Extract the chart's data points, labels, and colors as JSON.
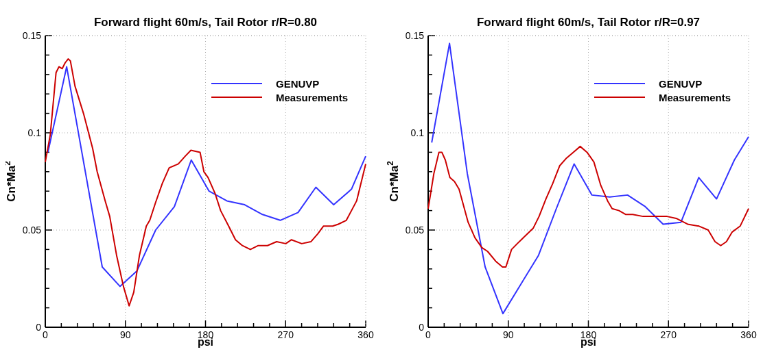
{
  "chart_data": [
    {
      "type": "line",
      "title": "Forward flight 60m/s, Tail Rotor r/R=0.80",
      "xlabel": "psi",
      "ylabel": "Cn*Ma$^{2}$",
      "xlim": [
        0,
        360
      ],
      "ylim": [
        0,
        0.15
      ],
      "xticks": [
        0,
        {
          "value": 18,
          "label": null
        },
        {
          "value": 36,
          "label": null
        },
        {
          "value": 54,
          "label": null
        },
        {
          "value": 72,
          "label": null
        },
        90,
        {
          "value": 108,
          "label": null
        },
        {
          "value": 126,
          "label": null
        },
        {
          "value": 144,
          "label": null
        },
        {
          "value": 162,
          "label": null
        },
        180,
        {
          "value": 198,
          "label": null
        },
        {
          "value": 216,
          "label": null
        },
        {
          "value": 234,
          "label": null
        },
        {
          "value": 252,
          "label": null
        },
        270,
        {
          "value": 288,
          "label": null
        },
        {
          "value": 306,
          "label": null
        },
        {
          "value": 324,
          "label": null
        },
        {
          "value": 342,
          "label": null
        },
        360
      ],
      "yticks": [
        0,
        {
          "value": 0.01,
          "label": null
        },
        {
          "value": 0.02,
          "label": null
        },
        {
          "value": 0.03,
          "label": null
        },
        {
          "value": 0.04,
          "label": null
        },
        0.05,
        {
          "value": 0.06,
          "label": null
        },
        {
          "value": 0.07,
          "label": null
        },
        {
          "value": 0.08,
          "label": null
        },
        {
          "value": 0.09,
          "label": null
        },
        0.1,
        {
          "value": 0.11,
          "label": null
        },
        {
          "value": 0.12,
          "label": null
        },
        {
          "value": 0.13,
          "label": null
        },
        {
          "value": 0.14,
          "label": null
        },
        0.15
      ],
      "grid": true,
      "legend": "top right",
      "marker": "none",
      "line_style": "solid",
      "series": [
        {
          "name": "GENUVP",
          "color": "#3333ff",
          "x": [
            3,
            24,
            64,
            84,
            103,
            124,
            145,
            164,
            184,
            204,
            224,
            244,
            264,
            284,
            304,
            324,
            344,
            360
          ],
          "values": [
            0.09,
            0.134,
            0.031,
            0.021,
            0.029,
            0.05,
            0.062,
            0.086,
            0.07,
            0.065,
            0.063,
            0.058,
            0.055,
            0.059,
            0.072,
            0.063,
            0.071,
            0.088
          ]
        },
        {
          "name": "Measurements",
          "color": "#cc0000",
          "x": [
            0,
            5.6,
            12.1,
            15.4,
            19,
            22.3,
            25.7,
            28.2,
            33.4,
            42.9,
            53.2,
            58.3,
            67.3,
            72.4,
            80.1,
            87.8,
            94.2,
            99.4,
            105.8,
            113.5,
            117.4,
            123.8,
            131.5,
            139.2,
            149.5,
            157.2,
            163.6,
            173.9,
            178.2,
            182.9,
            190.6,
            197,
            206,
            213.7,
            221.4,
            230.4,
            239.3,
            249.6,
            259.9,
            270.2,
            276.6,
            288.1,
            298.4,
            306.1,
            312.5,
            322.8,
            329.2,
            338.2,
            349.8,
            360
          ],
          "values": [
            0.085,
            0.099,
            0.131,
            0.134,
            0.133,
            0.136,
            0.138,
            0.137,
            0.124,
            0.11,
            0.092,
            0.08,
            0.065,
            0.057,
            0.037,
            0.021,
            0.011,
            0.018,
            0.037,
            0.052,
            0.055,
            0.064,
            0.074,
            0.082,
            0.084,
            0.088,
            0.091,
            0.09,
            0.08,
            0.077,
            0.069,
            0.06,
            0.052,
            0.045,
            0.042,
            0.04,
            0.042,
            0.042,
            0.044,
            0.043,
            0.045,
            0.043,
            0.044,
            0.048,
            0.052,
            0.052,
            0.053,
            0.055,
            0.065,
            0.084
          ]
        }
      ]
    },
    {
      "type": "line",
      "title": "Forward flight 60m/s, Tail Rotor r/R=0.97",
      "xlabel": "psi",
      "ylabel": "Cn*Ma$^{2}$",
      "xlim": [
        0,
        360
      ],
      "ylim": [
        0,
        0.15
      ],
      "xticks": [
        0,
        {
          "value": 18,
          "label": null
        },
        {
          "value": 36,
          "label": null
        },
        {
          "value": 54,
          "label": null
        },
        {
          "value": 72,
          "label": null
        },
        90,
        {
          "value": 108,
          "label": null
        },
        {
          "value": 126,
          "label": null
        },
        {
          "value": 144,
          "label": null
        },
        {
          "value": 162,
          "label": null
        },
        180,
        {
          "value": 198,
          "label": null
        },
        {
          "value": 216,
          "label": null
        },
        {
          "value": 234,
          "label": null
        },
        {
          "value": 252,
          "label": null
        },
        270,
        {
          "value": 288,
          "label": null
        },
        {
          "value": 306,
          "label": null
        },
        {
          "value": 324,
          "label": null
        },
        {
          "value": 342,
          "label": null
        },
        360
      ],
      "yticks": [
        0,
        {
          "value": 0.01,
          "label": null
        },
        {
          "value": 0.02,
          "label": null
        },
        {
          "value": 0.03,
          "label": null
        },
        {
          "value": 0.04,
          "label": null
        },
        0.05,
        {
          "value": 0.06,
          "label": null
        },
        {
          "value": 0.07,
          "label": null
        },
        {
          "value": 0.08,
          "label": null
        },
        {
          "value": 0.09,
          "label": null
        },
        0.1,
        {
          "value": 0.11,
          "label": null
        },
        {
          "value": 0.12,
          "label": null
        },
        {
          "value": 0.13,
          "label": null
        },
        {
          "value": 0.14,
          "label": null
        },
        0.15
      ],
      "grid": true,
      "legend": "top right",
      "marker": "none",
      "line_style": "solid",
      "series": [
        {
          "name": "GENUVP",
          "color": "#3333ff",
          "x": [
            4,
            24,
            44,
            64,
            84,
            104,
            124,
            144,
            164,
            184,
            204,
            224,
            244,
            264,
            284,
            304,
            324,
            344,
            360
          ],
          "values": [
            0.095,
            0.146,
            0.079,
            0.031,
            0.007,
            0.022,
            0.037,
            0.061,
            0.084,
            0.068,
            0.067,
            0.068,
            0.062,
            0.053,
            0.054,
            0.077,
            0.066,
            0.086,
            0.098
          ]
        },
        {
          "name": "Measurements",
          "color": "#cc0000",
          "x": [
            0,
            6.4,
            12.1,
            15.4,
            19.3,
            24.4,
            29.5,
            34.7,
            44.9,
            52.6,
            60.3,
            66.8,
            75.8,
            83.5,
            87.3,
            93.7,
            100.1,
            109.1,
            118.1,
            124.6,
            132.3,
            140,
            147.7,
            155.4,
            163.1,
            170.8,
            178.5,
            186.2,
            193.9,
            201.6,
            206.7,
            214.4,
            222.1,
            229.8,
            241.4,
            253,
            268.4,
            278.6,
            291.5,
            304.3,
            314.6,
            322.3,
            328.7,
            335.1,
            341.6,
            350.5,
            360
          ],
          "values": [
            0.061,
            0.079,
            0.09,
            0.09,
            0.086,
            0.077,
            0.075,
            0.071,
            0.054,
            0.046,
            0.041,
            0.039,
            0.034,
            0.031,
            0.031,
            0.04,
            0.043,
            0.047,
            0.051,
            0.057,
            0.066,
            0.074,
            0.083,
            0.087,
            0.09,
            0.093,
            0.09,
            0.085,
            0.073,
            0.065,
            0.061,
            0.06,
            0.058,
            0.058,
            0.057,
            0.057,
            0.057,
            0.056,
            0.053,
            0.052,
            0.05,
            0.044,
            0.042,
            0.044,
            0.049,
            0.052,
            0.061
          ]
        }
      ]
    }
  ]
}
